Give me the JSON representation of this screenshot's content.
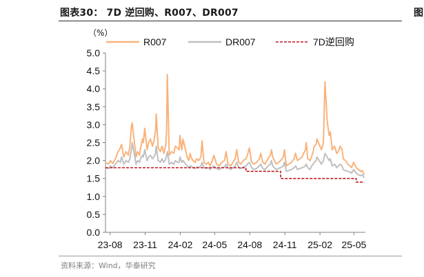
{
  "header": {
    "title": "图表30： 7D 逆回购、R007、DR007",
    "right_fragment": "图"
  },
  "footer": {
    "source": "资料来源：Wind，华泰研究"
  },
  "chart_data": {
    "type": "line",
    "title": "图表30： 7D 逆回购、R007、DR007",
    "ylabel": "（%）",
    "xlabel": "",
    "ylim": [
      0.0,
      5.0
    ],
    "yticks": [
      "0.0",
      "0.5",
      "1.0",
      "1.5",
      "2.0",
      "2.5",
      "3.0",
      "3.5",
      "4.0",
      "4.5",
      "5.0"
    ],
    "xticks": [
      "23-08",
      "23-11",
      "24-02",
      "24-05",
      "24-08",
      "24-11",
      "25-02",
      "25-05"
    ],
    "xtick_dates": [
      "2023-08-01",
      "2023-11-01",
      "2024-02-01",
      "2024-05-01",
      "2024-08-01",
      "2024-11-01",
      "2025-02-01",
      "2025-05-01"
    ],
    "xlim": [
      "2023-07-20",
      "2025-05-31"
    ],
    "grid": false,
    "legend_position": "top",
    "series": [
      {
        "name": "R007",
        "color": "#F9B27A",
        "style": "solid",
        "x": [
          "2023-07-20",
          "2023-07-28",
          "2023-08-02",
          "2023-08-08",
          "2023-08-15",
          "2023-08-22",
          "2023-08-28",
          "2023-08-31",
          "2023-09-06",
          "2023-09-12",
          "2023-09-18",
          "2023-09-22",
          "2023-09-26",
          "2023-09-28",
          "2023-10-08",
          "2023-10-12",
          "2023-10-17",
          "2023-10-20",
          "2023-10-25",
          "2023-10-27",
          "2023-10-31",
          "2023-11-06",
          "2023-11-10",
          "2023-11-15",
          "2023-11-20",
          "2023-11-24",
          "2023-11-28",
          "2023-11-30",
          "2023-12-05",
          "2023-12-11",
          "2023-12-15",
          "2023-12-20",
          "2023-12-25",
          "2023-12-27",
          "2023-12-29",
          "2024-01-03",
          "2024-01-09",
          "2024-01-15",
          "2024-01-19",
          "2024-01-25",
          "2024-01-29",
          "2024-01-31",
          "2024-02-05",
          "2024-02-08",
          "2024-02-19",
          "2024-02-23",
          "2024-02-27",
          "2024-02-29",
          "2024-03-05",
          "2024-03-11",
          "2024-03-15",
          "2024-03-20",
          "2024-03-26",
          "2024-03-29",
          "2024-04-03",
          "2024-04-09",
          "2024-04-15",
          "2024-04-19",
          "2024-04-25",
          "2024-04-29",
          "2024-05-06",
          "2024-05-13",
          "2024-05-20",
          "2024-05-27",
          "2024-05-31",
          "2024-06-05",
          "2024-06-12",
          "2024-06-18",
          "2024-06-24",
          "2024-06-28",
          "2024-07-03",
          "2024-07-09",
          "2024-07-15",
          "2024-07-22",
          "2024-07-26",
          "2024-07-31",
          "2024-08-06",
          "2024-08-12",
          "2024-08-19",
          "2024-08-26",
          "2024-08-30",
          "2024-09-04",
          "2024-09-10",
          "2024-09-18",
          "2024-09-24",
          "2024-09-27",
          "2024-09-30",
          "2024-10-09",
          "2024-10-15",
          "2024-10-21",
          "2024-10-28",
          "2024-10-31",
          "2024-11-05",
          "2024-11-11",
          "2024-11-18",
          "2024-11-25",
          "2024-11-29",
          "2024-12-04",
          "2024-12-10",
          "2024-12-16",
          "2024-12-20",
          "2024-12-25",
          "2024-12-27",
          "2024-12-31",
          "2025-01-06",
          "2025-01-10",
          "2025-01-14",
          "2025-01-17",
          "2025-01-22",
          "2025-01-24",
          "2025-02-05",
          "2025-02-10",
          "2025-02-14",
          "2025-02-20",
          "2025-02-25",
          "2025-02-28",
          "2025-03-05",
          "2025-03-11",
          "2025-03-17",
          "2025-03-21",
          "2025-03-26",
          "2025-03-31",
          "2025-04-03",
          "2025-04-09",
          "2025-04-15",
          "2025-04-21",
          "2025-04-25",
          "2025-04-30",
          "2025-05-07",
          "2025-05-13",
          "2025-05-19",
          "2025-05-23",
          "2025-05-28"
        ],
        "y": [
          1.95,
          1.9,
          2.0,
          1.92,
          2.05,
          2.25,
          2.35,
          2.45,
          2.1,
          2.25,
          2.15,
          2.4,
          2.95,
          3.05,
          2.1,
          2.25,
          2.15,
          2.35,
          2.6,
          2.5,
          2.9,
          2.3,
          2.5,
          2.6,
          2.4,
          2.55,
          2.8,
          3.3,
          2.35,
          2.25,
          2.4,
          2.2,
          2.45,
          2.8,
          4.4,
          2.15,
          2.25,
          2.2,
          2.4,
          2.35,
          2.3,
          2.7,
          2.3,
          2.6,
          2.1,
          2.0,
          2.2,
          2.1,
          2.0,
          1.95,
          2.05,
          2.0,
          2.1,
          2.55,
          1.95,
          1.9,
          1.95,
          1.85,
          2.0,
          2.15,
          1.9,
          1.85,
          1.95,
          2.0,
          2.25,
          1.9,
          1.85,
          1.95,
          2.05,
          2.3,
          1.95,
          1.9,
          2.0,
          2.05,
          2.15,
          2.35,
          1.95,
          1.9,
          1.95,
          2.05,
          2.2,
          1.95,
          1.9,
          2.05,
          2.15,
          2.3,
          2.1,
          1.9,
          1.95,
          2.0,
          2.1,
          2.3,
          1.85,
          1.9,
          1.95,
          2.05,
          2.2,
          2.0,
          2.05,
          2.1,
          2.2,
          2.3,
          2.5,
          2.05,
          2.0,
          2.1,
          2.25,
          2.4,
          2.45,
          2.6,
          2.3,
          2.5,
          4.2,
          3.1,
          2.7,
          2.8,
          2.3,
          2.4,
          2.2,
          2.25,
          2.4,
          2.3,
          2.05,
          2.0,
          1.9,
          1.85,
          1.8,
          1.95,
          1.8,
          1.75,
          1.7,
          1.72,
          1.6
        ]
      },
      {
        "name": "DR007",
        "color": "#BFBFBF",
        "style": "solid",
        "x": [
          "2023-07-20",
          "2023-07-28",
          "2023-08-02",
          "2023-08-08",
          "2023-08-15",
          "2023-08-22",
          "2023-08-28",
          "2023-08-31",
          "2023-09-06",
          "2023-09-12",
          "2023-09-18",
          "2023-09-22",
          "2023-09-26",
          "2023-09-28",
          "2023-10-08",
          "2023-10-12",
          "2023-10-17",
          "2023-10-20",
          "2023-10-25",
          "2023-10-27",
          "2023-10-31",
          "2023-11-06",
          "2023-11-10",
          "2023-11-15",
          "2023-11-20",
          "2023-11-24",
          "2023-11-28",
          "2023-11-30",
          "2023-12-05",
          "2023-12-11",
          "2023-12-15",
          "2023-12-20",
          "2023-12-25",
          "2023-12-27",
          "2023-12-29",
          "2024-01-03",
          "2024-01-09",
          "2024-01-15",
          "2024-01-19",
          "2024-01-25",
          "2024-01-29",
          "2024-01-31",
          "2024-02-05",
          "2024-02-08",
          "2024-02-19",
          "2024-02-23",
          "2024-02-27",
          "2024-02-29",
          "2024-03-05",
          "2024-03-11",
          "2024-03-15",
          "2024-03-20",
          "2024-03-26",
          "2024-03-29",
          "2024-04-03",
          "2024-04-09",
          "2024-04-15",
          "2024-04-19",
          "2024-04-25",
          "2024-04-29",
          "2024-05-06",
          "2024-05-13",
          "2024-05-20",
          "2024-05-27",
          "2024-05-31",
          "2024-06-05",
          "2024-06-12",
          "2024-06-18",
          "2024-06-24",
          "2024-06-28",
          "2024-07-03",
          "2024-07-09",
          "2024-07-15",
          "2024-07-22",
          "2024-07-26",
          "2024-07-31",
          "2024-08-06",
          "2024-08-12",
          "2024-08-19",
          "2024-08-26",
          "2024-08-30",
          "2024-09-04",
          "2024-09-10",
          "2024-09-18",
          "2024-09-24",
          "2024-09-27",
          "2024-09-30",
          "2024-10-09",
          "2024-10-15",
          "2024-10-21",
          "2024-10-28",
          "2024-10-31",
          "2024-11-05",
          "2024-11-11",
          "2024-11-18",
          "2024-11-25",
          "2024-11-29",
          "2024-12-04",
          "2024-12-10",
          "2024-12-16",
          "2024-12-20",
          "2024-12-25",
          "2024-12-27",
          "2024-12-31",
          "2025-01-06",
          "2025-01-10",
          "2025-01-14",
          "2025-01-17",
          "2025-01-22",
          "2025-01-24",
          "2025-02-05",
          "2025-02-10",
          "2025-02-14",
          "2025-02-20",
          "2025-02-25",
          "2025-02-28",
          "2025-03-05",
          "2025-03-11",
          "2025-03-17",
          "2025-03-21",
          "2025-03-26",
          "2025-03-31",
          "2025-04-03",
          "2025-04-09",
          "2025-04-15",
          "2025-04-21",
          "2025-04-25",
          "2025-04-30",
          "2025-05-07",
          "2025-05-13",
          "2025-05-19",
          "2025-05-23",
          "2025-05-28"
        ],
        "y": [
          1.8,
          1.78,
          1.85,
          1.8,
          1.9,
          2.0,
          1.95,
          2.1,
          1.9,
          2.0,
          1.95,
          2.05,
          2.3,
          2.5,
          1.9,
          2.0,
          1.95,
          2.05,
          2.15,
          2.1,
          2.3,
          2.0,
          2.1,
          2.15,
          2.05,
          2.1,
          2.2,
          2.4,
          2.0,
          1.95,
          2.05,
          1.95,
          2.05,
          2.15,
          2.25,
          1.9,
          1.95,
          1.9,
          2.0,
          1.95,
          1.95,
          2.1,
          1.95,
          2.0,
          1.85,
          1.8,
          1.85,
          1.85,
          1.8,
          1.78,
          1.82,
          1.8,
          1.85,
          1.95,
          1.8,
          1.78,
          1.8,
          1.75,
          1.82,
          1.85,
          1.78,
          1.75,
          1.8,
          1.82,
          1.9,
          1.8,
          1.75,
          1.8,
          1.85,
          1.95,
          1.8,
          1.78,
          1.82,
          1.85,
          1.9,
          1.95,
          1.8,
          1.75,
          1.78,
          1.85,
          1.9,
          1.78,
          1.75,
          1.85,
          1.9,
          2.0,
          1.85,
          1.75,
          1.78,
          1.8,
          1.85,
          1.95,
          1.7,
          1.72,
          1.75,
          1.8,
          1.85,
          1.75,
          1.78,
          1.8,
          1.82,
          1.85,
          1.9,
          1.8,
          1.75,
          1.85,
          1.9,
          1.95,
          2.0,
          2.1,
          1.9,
          2.0,
          2.2,
          2.1,
          2.0,
          2.05,
          1.85,
          1.9,
          1.8,
          1.85,
          1.9,
          1.85,
          1.75,
          1.72,
          1.7,
          1.68,
          1.65,
          1.75,
          1.65,
          1.6,
          1.58,
          1.6,
          1.52
        ]
      },
      {
        "name": "7D逆回购",
        "color": "#C0141E",
        "style": "dashed",
        "x": [
          "2023-07-20",
          "2024-07-22",
          "2024-07-22",
          "2024-10-21",
          "2024-10-21",
          "2025-05-07",
          "2025-05-07",
          "2025-05-28"
        ],
        "y": [
          1.8,
          1.8,
          1.7,
          1.7,
          1.5,
          1.5,
          1.4,
          1.4
        ]
      }
    ]
  }
}
